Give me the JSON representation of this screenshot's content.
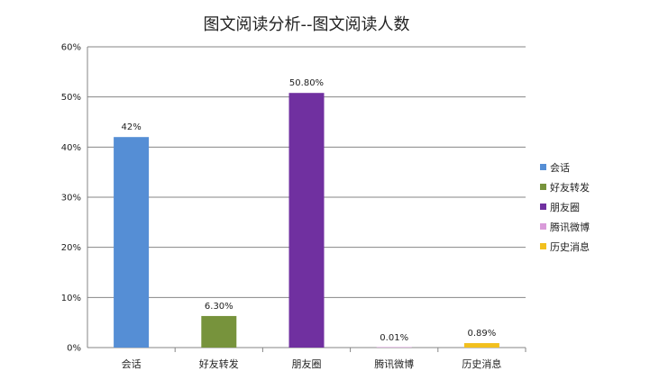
{
  "chart_data": {
    "type": "bar",
    "title": "图文阅读分析--图文阅读人数",
    "categories": [
      "会话",
      "好友转发",
      "朋友圈",
      "腾讯微博",
      "历史消息"
    ],
    "values": [
      42,
      6.3,
      50.8,
      0.01,
      0.89
    ],
    "data_labels": [
      "42%",
      "6.30%",
      "50.80%",
      "0.01%",
      "0.89%"
    ],
    "colors": [
      "#558ed5",
      "#77933c",
      "#7030a0",
      "#d99bd9",
      "#f2c01e"
    ],
    "ylim": [
      0,
      60
    ],
    "y_ticks": [
      0,
      10,
      20,
      30,
      40,
      50,
      60
    ],
    "y_tick_labels": [
      "0%",
      "10%",
      "20%",
      "30%",
      "40%",
      "50%",
      "60%"
    ],
    "grid": true,
    "legend_position": "right",
    "xlabel": "",
    "ylabel": ""
  }
}
